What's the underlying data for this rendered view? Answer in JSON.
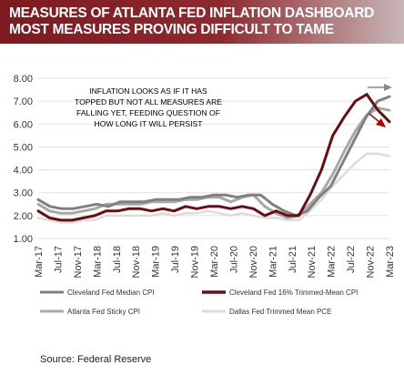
{
  "header": {
    "title_line1": "MEASURES OF ATLANTA FED INFLATION DASHBOARD",
    "title_line2": "MOST MEASURES PROVING DIFFICULT TO TAME"
  },
  "source": "Source: Federal Reserve",
  "chart_data": {
    "type": "line",
    "title": "MEASURES OF ATLANTA FED INFLATION DASHBOARD MOST MEASURES PROVING DIFFICULT TO TAME",
    "annotation": [
      "INFLATION LOOKS AS IF IT HAS",
      "TOPPED BUT NOT ALL MEASURES ARE",
      "FALLING YET, FEEDING QUESTION OF",
      "HOW LONG IT WILL PERSIST"
    ],
    "x_start": "Mar-17",
    "x_end": "Mar-23",
    "x_tick_labels": [
      "Mar-17",
      "Jul-17",
      "Nov-17",
      "Mar-18",
      "Jul-18",
      "Nov-18",
      "Mar-19",
      "Jul-19",
      "Nov-19",
      "Mar-20",
      "Jul-20",
      "Nov-20",
      "Mar-21",
      "Jul-21",
      "Nov-21",
      "Mar-22",
      "Jul-22",
      "Nov-22",
      "Mar-23"
    ],
    "y_tick_labels": [
      "1.00",
      "2.00",
      "3.00",
      "4.00",
      "5.00",
      "6.00",
      "7.00",
      "8.00"
    ],
    "ylim": [
      1,
      8
    ],
    "grid": "horizontal",
    "legend_position": "bottom",
    "arrows": [
      {
        "direction": "up",
        "color": "#888888"
      },
      {
        "direction": "down",
        "color": "#b00000"
      }
    ],
    "series": [
      {
        "name": "Cleveland Fed Median CPI",
        "color": "#808080",
        "values": [
          2.7,
          2.4,
          2.3,
          2.3,
          2.4,
          2.5,
          2.4,
          2.6,
          2.6,
          2.6,
          2.7,
          2.7,
          2.7,
          2.8,
          2.8,
          2.9,
          2.9,
          2.8,
          2.9,
          2.9,
          2.5,
          2.2,
          2.0,
          2.2,
          2.8,
          3.3,
          4.3,
          5.3,
          6.3,
          7.0,
          7.2
        ]
      },
      {
        "name": "Cleveland Fed 16% Trimmed-Mean CPI",
        "color": "#6b0d10",
        "values": [
          2.2,
          1.9,
          1.8,
          1.8,
          1.9,
          2.0,
          2.2,
          2.2,
          2.3,
          2.3,
          2.2,
          2.3,
          2.2,
          2.4,
          2.3,
          2.4,
          2.4,
          2.3,
          2.4,
          2.3,
          2.0,
          2.2,
          2.0,
          2.0,
          2.9,
          4.0,
          5.5,
          6.3,
          7.0,
          7.3,
          6.6,
          6.1
        ]
      },
      {
        "name": "Atlanta Fed Sticky CPI",
        "color": "#a8a8a8",
        "values": [
          2.5,
          2.2,
          2.1,
          2.1,
          2.2,
          2.3,
          2.5,
          2.5,
          2.5,
          2.5,
          2.6,
          2.6,
          2.6,
          2.7,
          2.7,
          2.8,
          2.8,
          2.6,
          2.8,
          2.9,
          2.4,
          2.1,
          1.9,
          2.0,
          2.5,
          3.0,
          3.8,
          4.8,
          5.7,
          6.4,
          6.7,
          6.6
        ]
      },
      {
        "name": "Dallas Fed Trimmed Mean PCE",
        "color": "#dcdcdc",
        "values": [
          1.9,
          1.8,
          1.7,
          1.7,
          1.8,
          1.8,
          2.0,
          2.0,
          2.0,
          2.0,
          2.0,
          2.1,
          2.0,
          2.1,
          2.1,
          2.2,
          2.1,
          2.0,
          2.1,
          2.0,
          1.9,
          1.9,
          1.8,
          1.8,
          2.2,
          2.7,
          3.3,
          3.8,
          4.3,
          4.7,
          4.7,
          4.6
        ]
      }
    ]
  }
}
